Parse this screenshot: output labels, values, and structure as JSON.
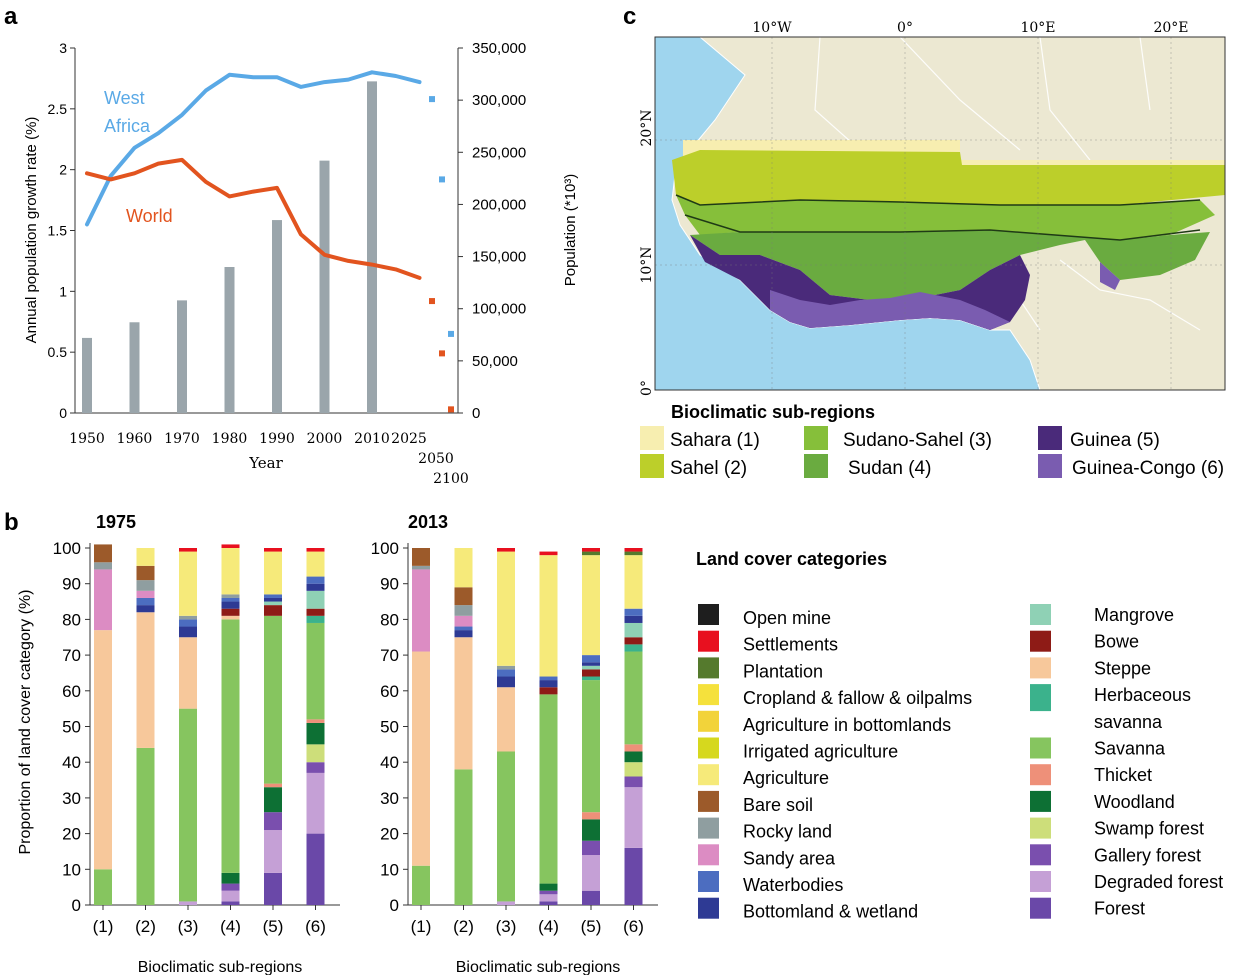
{
  "panel_labels": {
    "a": "a",
    "b": "b",
    "c": "c"
  },
  "panel_a": {
    "ylabel_left": "Annual population growth rate (%)",
    "ylabel_right": "Population (*10³)",
    "xlabel": "Year",
    "left_ticks": [
      "0",
      "0.5",
      "1",
      "1.5",
      "2",
      "2.5",
      "3"
    ],
    "right_ticks": [
      "0",
      "50,000",
      "100,000",
      "150,000",
      "200,000",
      "250,000",
      "300,000",
      "350,000"
    ],
    "x_ticks": [
      "1950",
      "1960",
      "1970",
      "1980",
      "1990",
      "2000",
      "2010",
      "2025"
    ],
    "x_ticks_extra": [
      "2050",
      "2100"
    ],
    "label_west_africa_1": "West",
    "label_west_africa_2": "Africa",
    "label_world": "World",
    "colors": {
      "west_africa": "#5aa9e6",
      "world": "#e2541f",
      "bars": "#9aa5ab"
    }
  },
  "panel_b": {
    "ylabel": "Proportion of land cover category (%)",
    "title_1975": "1975",
    "title_2013": "2013",
    "xlabel": "Bioclimatic sub-regions",
    "y_ticks": [
      "0",
      "10",
      "20",
      "30",
      "40",
      "50",
      "60",
      "70",
      "80",
      "90",
      "100"
    ],
    "categories": [
      "(1)",
      "(2)",
      "(3)",
      "(4)",
      "(5)",
      "(6)"
    ],
    "legend_title": "Land cover categories",
    "legend_left": [
      {
        "label": "Open mine",
        "color": "#1e1e1e"
      },
      {
        "label": "Settlements",
        "color": "#e8101f"
      },
      {
        "label": "Plantation",
        "color": "#557a2d"
      },
      {
        "label": "Cropland & fallow & oilpalms",
        "color": "#f5e13c"
      },
      {
        "label": "Agriculture in bottomlands",
        "color": "#f2d33a"
      },
      {
        "label": "Irrigated agriculture",
        "color": "#d6d81e"
      },
      {
        "label": "Agriculture",
        "color": "#f6ea7a"
      },
      {
        "label": "Bare soil",
        "color": "#9c5a2a"
      },
      {
        "label": "Rocky land",
        "color": "#8f9ea0"
      },
      {
        "label": "Sandy area",
        "color": "#dc8cc3"
      },
      {
        "label": "Waterbodies",
        "color": "#4c6dc0"
      },
      {
        "label": "Bottomland & wetland",
        "color": "#2e3a94"
      }
    ],
    "legend_right": [
      {
        "label": "Mangrove",
        "color": "#8fd1b5"
      },
      {
        "label": "Bowe",
        "color": "#8e1b16"
      },
      {
        "label": "Steppe",
        "color": "#f7c89b"
      },
      {
        "label": "Herbaceous",
        "color": "#3bb28c"
      },
      {
        "label": "savanna",
        "color": ""
      },
      {
        "label": "Savanna",
        "color": "#86c55f"
      },
      {
        "label": "Thicket",
        "color": "#ee9079"
      },
      {
        "label": "Woodland",
        "color": "#0d7034"
      },
      {
        "label": "Swamp forest",
        "color": "#cdde7a"
      },
      {
        "label": "Gallery forest",
        "color": "#7a4fae"
      },
      {
        "label": "Degraded forest",
        "color": "#c5a0d6"
      },
      {
        "label": "Forest",
        "color": "#6a48a8"
      }
    ]
  },
  "panel_c": {
    "lon_ticks": [
      "10°W",
      "0°",
      "10°E",
      "20°E"
    ],
    "lat_ticks": [
      "20°N",
      "10°N",
      "0°"
    ],
    "legend_title": "Bioclimatic sub-regions",
    "legend": [
      {
        "label": "Sahara (1)",
        "color": "#f7eeb0"
      },
      {
        "label": "Sahel (2)",
        "color": "#bccf2a"
      },
      {
        "label": "Sudano-Sahel (3)",
        "color": "#86bf3a"
      },
      {
        "label": "Sudan (4)",
        "color": "#6aab40"
      },
      {
        "label": "Guinea (5)",
        "color": "#4a2a7a"
      },
      {
        "label": "Guinea-Congo (6)",
        "color": "#7a5cb0"
      }
    ],
    "colors": {
      "ocean": "#9fd5ee",
      "land": "#ece8d2"
    }
  },
  "chart_data": [
    {
      "type": "bar",
      "panel": "a",
      "xlabel": "Year",
      "ylabel": "Population (*10³)",
      "ylim": [
        0,
        350000
      ],
      "categories": [
        "1950",
        "1960",
        "1970",
        "1980",
        "1990",
        "2000",
        "2010"
      ],
      "values": [
        72000,
        87000,
        108000,
        140000,
        185000,
        242000,
        318000
      ]
    },
    {
      "type": "line",
      "panel": "a",
      "xlabel": "Year",
      "ylabel": "Annual population growth rate (%)",
      "ylim": [
        0,
        3
      ],
      "series": [
        {
          "name": "West Africa",
          "x": [
            1950,
            1955,
            1960,
            1965,
            1970,
            1975,
            1980,
            1985,
            1990,
            1995,
            2000,
            2005,
            2010,
            2015,
            2020
          ],
          "y": [
            1.55,
            1.95,
            2.18,
            2.3,
            2.45,
            2.65,
            2.78,
            2.76,
            2.76,
            2.68,
            2.72,
            2.74,
            2.8,
            2.77,
            2.72
          ]
        },
        {
          "name": "World",
          "x": [
            1950,
            1955,
            1960,
            1965,
            1970,
            1975,
            1980,
            1985,
            1990,
            1995,
            2000,
            2005,
            2010,
            2015,
            2020
          ],
          "y": [
            1.97,
            1.92,
            1.97,
            2.05,
            2.08,
            1.9,
            1.78,
            1.82,
            1.85,
            1.47,
            1.3,
            1.25,
            1.22,
            1.18,
            1.11
          ]
        }
      ],
      "projections": {
        "x": [
          "2025",
          "2050",
          "2100"
        ],
        "West Africa": [
          2.58,
          1.92,
          0.65
        ],
        "World": [
          0.92,
          0.49,
          0.03
        ]
      }
    },
    {
      "type": "bar",
      "stacked": true,
      "panel": "b",
      "title": "1975",
      "xlabel": "Bioclimatic sub-regions",
      "ylabel": "Proportion of land cover category (%)",
      "ylim": [
        0,
        100
      ],
      "categories": [
        "(1)",
        "(2)",
        "(3)",
        "(4)",
        "(5)",
        "(6)"
      ],
      "series": [
        {
          "name": "Forest",
          "values": [
            0,
            0,
            0,
            1,
            9,
            20
          ]
        },
        {
          "name": "Degraded forest",
          "values": [
            0,
            0,
            1,
            3,
            12,
            17
          ]
        },
        {
          "name": "Gallery forest",
          "values": [
            0,
            0,
            0,
            2,
            5,
            3
          ]
        },
        {
          "name": "Swamp forest",
          "values": [
            0,
            0,
            0,
            0,
            0,
            5
          ]
        },
        {
          "name": "Woodland",
          "values": [
            0,
            0,
            0,
            3,
            7,
            6
          ]
        },
        {
          "name": "Thicket",
          "values": [
            0,
            0,
            0,
            0,
            1,
            1
          ]
        },
        {
          "name": "Savanna",
          "values": [
            10,
            44,
            54,
            71,
            47,
            27
          ]
        },
        {
          "name": "Herbaceous savanna",
          "values": [
            0,
            0,
            0,
            0,
            0,
            2
          ]
        },
        {
          "name": "Steppe",
          "values": [
            67,
            38,
            20,
            1,
            0,
            0
          ]
        },
        {
          "name": "Bowe",
          "values": [
            0,
            0,
            0,
            2,
            3,
            2
          ]
        },
        {
          "name": "Mangrove",
          "values": [
            0,
            0,
            0,
            0,
            1,
            5
          ]
        },
        {
          "name": "Bottomland & wetland",
          "values": [
            0,
            2,
            3,
            2,
            1,
            2
          ]
        },
        {
          "name": "Waterbodies",
          "values": [
            0,
            2,
            2,
            1,
            1,
            2
          ]
        },
        {
          "name": "Sandy area",
          "values": [
            17,
            2,
            0,
            0,
            0,
            0
          ]
        },
        {
          "name": "Rocky land",
          "values": [
            2,
            3,
            1,
            1,
            0,
            0
          ]
        },
        {
          "name": "Bare soil",
          "values": [
            5,
            4,
            0,
            0,
            0,
            0
          ]
        },
        {
          "name": "Agriculture",
          "values": [
            0,
            5,
            18,
            13,
            12,
            7
          ]
        },
        {
          "name": "Settlements",
          "values": [
            0,
            0,
            1,
            1,
            1,
            1
          ]
        }
      ]
    },
    {
      "type": "bar",
      "stacked": true,
      "panel": "b",
      "title": "2013",
      "xlabel": "Bioclimatic sub-regions",
      "ylabel": "Proportion of land cover category (%)",
      "ylim": [
        0,
        100
      ],
      "categories": [
        "(1)",
        "(2)",
        "(3)",
        "(4)",
        "(5)",
        "(6)"
      ],
      "series": [
        {
          "name": "Forest",
          "values": [
            0,
            0,
            0,
            1,
            4,
            16
          ]
        },
        {
          "name": "Degraded forest",
          "values": [
            0,
            0,
            1,
            2,
            10,
            17
          ]
        },
        {
          "name": "Gallery forest",
          "values": [
            0,
            0,
            0,
            1,
            4,
            3
          ]
        },
        {
          "name": "Swamp forest",
          "values": [
            0,
            0,
            0,
            0,
            0,
            4
          ]
        },
        {
          "name": "Woodland",
          "values": [
            0,
            0,
            0,
            2,
            6,
            3
          ]
        },
        {
          "name": "Thicket",
          "values": [
            0,
            0,
            0,
            0,
            2,
            2
          ]
        },
        {
          "name": "Savanna",
          "values": [
            11,
            38,
            42,
            53,
            37,
            26
          ]
        },
        {
          "name": "Herbaceous savanna",
          "values": [
            0,
            0,
            0,
            0,
            1,
            2
          ]
        },
        {
          "name": "Steppe",
          "values": [
            60,
            37,
            18,
            0,
            0,
            0
          ]
        },
        {
          "name": "Bowe",
          "values": [
            0,
            0,
            0,
            2,
            2,
            2
          ]
        },
        {
          "name": "Mangrove",
          "values": [
            0,
            0,
            0,
            0,
            1,
            4
          ]
        },
        {
          "name": "Bottomland & wetland",
          "values": [
            0,
            2,
            3,
            2,
            1,
            2
          ]
        },
        {
          "name": "Waterbodies",
          "values": [
            0,
            1,
            2,
            1,
            2,
            2
          ]
        },
        {
          "name": "Sandy area",
          "values": [
            23,
            3,
            0,
            0,
            0,
            0
          ]
        },
        {
          "name": "Rocky land",
          "values": [
            1,
            3,
            1,
            0,
            0,
            0
          ]
        },
        {
          "name": "Bare soil",
          "values": [
            5,
            5,
            0,
            0,
            0,
            0
          ]
        },
        {
          "name": "Agriculture",
          "values": [
            0,
            11,
            32,
            34,
            28,
            15
          ]
        },
        {
          "name": "Plantation",
          "values": [
            0,
            0,
            0,
            0,
            1,
            1
          ]
        },
        {
          "name": "Settlements",
          "values": [
            0,
            0,
            1,
            1,
            1,
            1
          ]
        }
      ]
    }
  ]
}
